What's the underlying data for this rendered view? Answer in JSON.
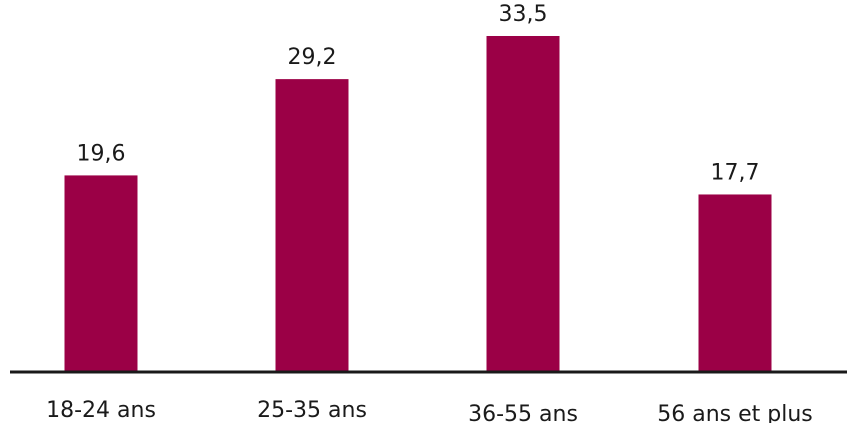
{
  "chart_data": {
    "type": "bar",
    "title": "",
    "xlabel": "",
    "ylabel": "",
    "categories": [
      "18-24 ans",
      "25-35 ans",
      "36-55 ans",
      "56 ans et plus"
    ],
    "values": [
      19.6,
      29.2,
      33.5,
      17.7
    ],
    "value_labels": [
      "19,6",
      "29,2",
      "33,5",
      "17,7"
    ],
    "ylim": [
      0,
      37
    ],
    "bar_color": "#9b0046",
    "axis_color": "#1a1a1a",
    "grid": false,
    "legend": "none"
  }
}
